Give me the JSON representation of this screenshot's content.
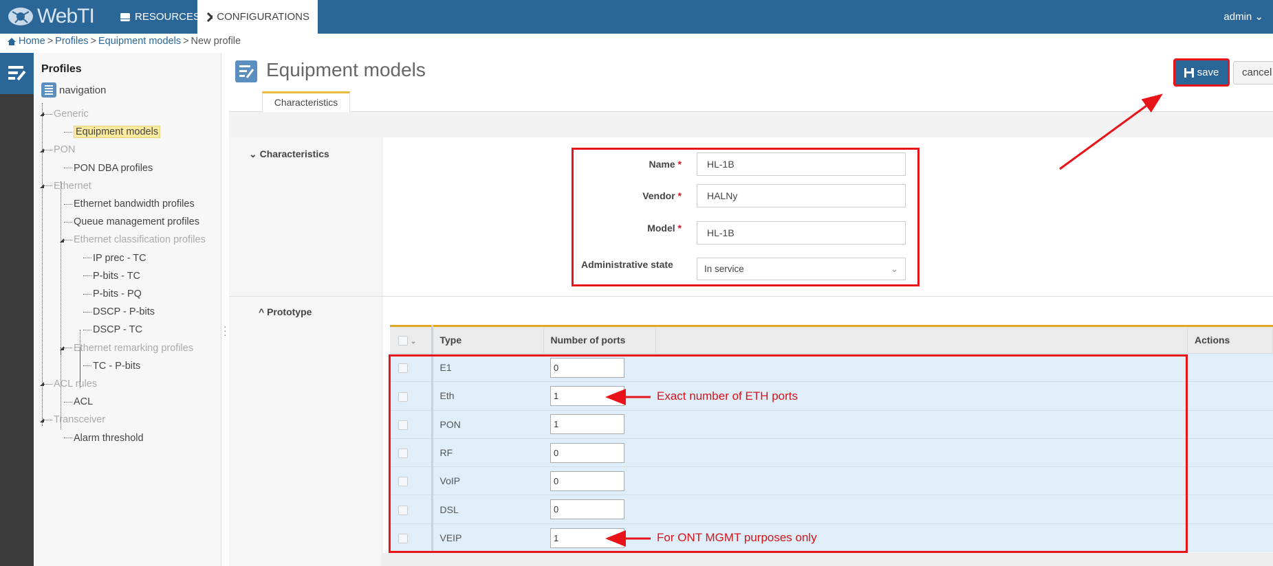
{
  "header": {
    "logo": "WebTI",
    "tabs": [
      {
        "label": "RESOURCES",
        "icon": "drive-icon"
      },
      {
        "label": "CONFIGURATIONS",
        "icon": "tools-icon",
        "active": true
      }
    ],
    "user": "admin"
  },
  "breadcrumb": [
    "Home",
    "Profiles",
    "Equipment models",
    "New profile"
  ],
  "sidebar": {
    "title": "Profiles",
    "nav_link": "navigation",
    "items": [
      {
        "label": "Generic",
        "group": true,
        "level": 0
      },
      {
        "label": "Equipment models",
        "level": 1,
        "selected": true
      },
      {
        "label": "PON",
        "group": true,
        "level": 0
      },
      {
        "label": "PON DBA profiles",
        "level": 1
      },
      {
        "label": "Ethernet",
        "group": true,
        "level": 0
      },
      {
        "label": "Ethernet bandwidth profiles",
        "level": 1
      },
      {
        "label": "Queue management profiles",
        "level": 1
      },
      {
        "label": "Ethernet classification profiles",
        "group": true,
        "level": 1
      },
      {
        "label": "IP prec - TC",
        "level": 2
      },
      {
        "label": "P-bits - TC",
        "level": 2
      },
      {
        "label": "P-bits - PQ",
        "level": 2
      },
      {
        "label": "DSCP - P-bits",
        "level": 2
      },
      {
        "label": "DSCP - TC",
        "level": 2
      },
      {
        "label": "Ethernet remarking profiles",
        "group": true,
        "level": 1
      },
      {
        "label": "TC - P-bits",
        "level": 2
      },
      {
        "label": "ACL rules",
        "group": true,
        "level": 0
      },
      {
        "label": "ACL",
        "level": 1
      },
      {
        "label": "Transceiver",
        "group": true,
        "level": 0
      },
      {
        "label": "Alarm threshold",
        "level": 1
      }
    ]
  },
  "page": {
    "title": "Equipment models",
    "tab": "Characteristics",
    "save": "save",
    "cancel": "cancel"
  },
  "characteristics": {
    "section": "Characteristics",
    "name_label": "Name",
    "name": "HL-1B",
    "vendor_label": "Vendor",
    "vendor": "HALNy",
    "model_label": "Model",
    "model": "HL-1B",
    "admin_label": "Administrative state",
    "admin_state": "In service"
  },
  "prototype": {
    "section": "Prototype",
    "columns": [
      "Type",
      "Number of ports",
      "",
      "Actions"
    ],
    "rows": [
      {
        "type": "E1",
        "ports": "0"
      },
      {
        "type": "Eth",
        "ports": "1"
      },
      {
        "type": "PON",
        "ports": "1"
      },
      {
        "type": "RF",
        "ports": "0"
      },
      {
        "type": "VoIP",
        "ports": "0"
      },
      {
        "type": "DSL",
        "ports": "0"
      },
      {
        "type": "VEIP",
        "ports": "1"
      }
    ]
  },
  "annotations": {
    "eth": "Exact number of ETH ports",
    "veip": "For ONT MGMT purposes only"
  },
  "colors": {
    "header": "#2b6699",
    "highlight": "#e8141a",
    "row": "#dfeef8",
    "accent": "#e0a624"
  }
}
